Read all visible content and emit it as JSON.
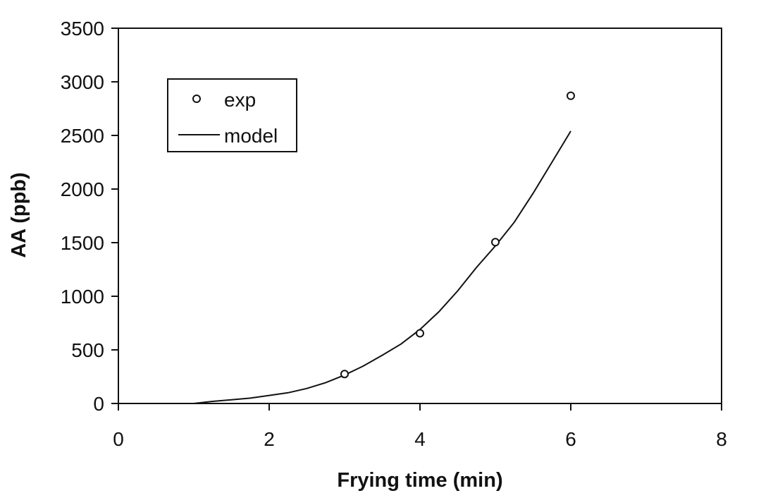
{
  "chart_data": {
    "type": "scatter",
    "title": "",
    "xlabel": "Frying time (min)",
    "ylabel": "AA (ppb)",
    "xlim": [
      0,
      8
    ],
    "ylim": [
      0,
      3500
    ],
    "xticks": [
      0,
      2,
      4,
      6,
      8
    ],
    "yticks": [
      0,
      500,
      1000,
      1500,
      2000,
      2500,
      3000,
      3500
    ],
    "grid": false,
    "legend_position": "top-left",
    "series": [
      {
        "name": "exp",
        "kind": "scatter",
        "marker": "open-circle",
        "color": "#111111",
        "x": [
          3,
          4,
          5,
          6
        ],
        "y": [
          275,
          655,
          1505,
          2870
        ]
      },
      {
        "name": "model",
        "kind": "line",
        "color": "#111111",
        "x": [
          1.0,
          1.25,
          1.5,
          1.75,
          2.0,
          2.25,
          2.5,
          2.75,
          3.0,
          3.25,
          3.5,
          3.75,
          4.0,
          4.25,
          4.5,
          4.75,
          5.0,
          5.25,
          5.5,
          5.75,
          6.0
        ],
        "y": [
          0,
          20,
          35,
          50,
          75,
          100,
          140,
          195,
          265,
          350,
          450,
          555,
          690,
          855,
          1050,
          1270,
          1470,
          1690,
          1960,
          2250,
          2540
        ]
      }
    ]
  }
}
